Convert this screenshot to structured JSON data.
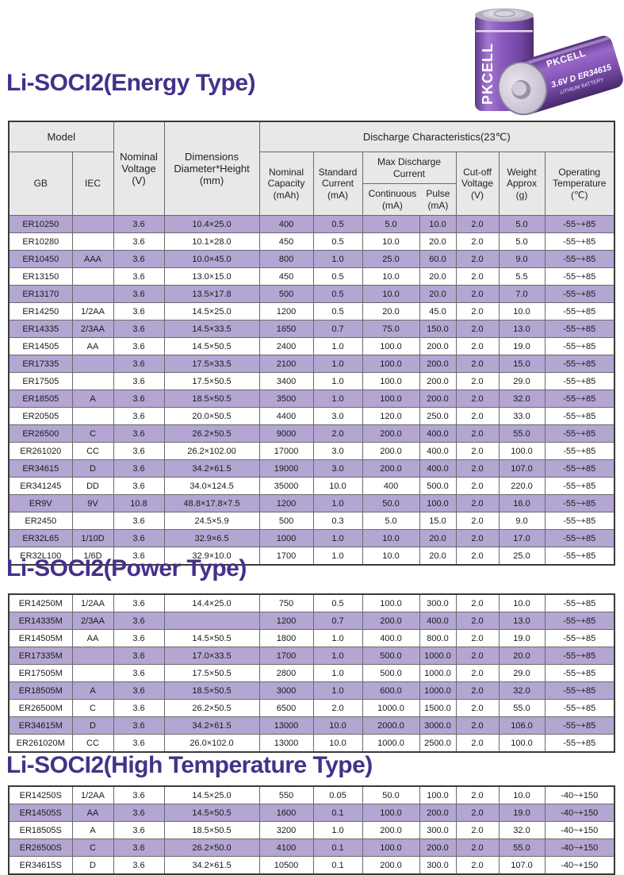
{
  "colors": {
    "title_text": "#453189",
    "alt_row_purple": "#b3a6d2",
    "header_gray": "#e8e8e8",
    "battery_purple": "#7d4fae"
  },
  "sections": {
    "energy": {
      "title": "Li-SOCI2(Energy Type)"
    },
    "power": {
      "title": "Li-SOCI2(Power Type)"
    },
    "high_temp": {
      "title": "Li-SOCI2(High Temperature Type)"
    }
  },
  "header": {
    "model": "Model",
    "gb": "GB",
    "iec": "IEC",
    "nominal_voltage": "Nominal\nVoltage\n(V)",
    "dimensions": "Dimensions\nDiameter*Height\n(mm)",
    "discharge": "Discharge Characteristics(23℃)",
    "nominal_capacity": "Nominal\nCapacity\n(mAh)",
    "standard_current": "Standard\nCurrent\n(mA)",
    "max_discharge": "Max Discharge\nCurrent",
    "continuous": "Continuous\n(mA)",
    "pulse": "Pulse\n(mA)",
    "cutoff_voltage": "Cut-off\nVoltage\n(V)",
    "weight": "Weight\nApprox\n(g)",
    "operating_temp": "Operating\nTemperature\n(℃)"
  },
  "battery_photo": {
    "brand": "PKCELL",
    "label": "3.6V D ER34615",
    "sublabel": "LITHIUM BATTERY"
  },
  "energy_rows": [
    {
      "gb": "ER10250",
      "iec": "",
      "voltage": "3.6",
      "dims": "10.4×25.0",
      "capacity": "400",
      "std": "0.5",
      "cont": "5.0",
      "pulse": "10.0",
      "cutoff": "2.0",
      "weight": "5.0",
      "temp": "-55~+85"
    },
    {
      "gb": "ER10280",
      "iec": "",
      "voltage": "3.6",
      "dims": "10.1×28.0",
      "capacity": "450",
      "std": "0.5",
      "cont": "10.0",
      "pulse": "20.0",
      "cutoff": "2.0",
      "weight": "5.0",
      "temp": "-55~+85"
    },
    {
      "gb": "ER10450",
      "iec": "AAA",
      "voltage": "3.6",
      "dims": "10.0×45.0",
      "capacity": "800",
      "std": "1.0",
      "cont": "25.0",
      "pulse": "60.0",
      "cutoff": "2.0",
      "weight": "9.0",
      "temp": "-55~+85"
    },
    {
      "gb": "ER13150",
      "iec": "",
      "voltage": "3.6",
      "dims": "13.0×15.0",
      "capacity": "450",
      "std": "0.5",
      "cont": "10.0",
      "pulse": "20.0",
      "cutoff": "2.0",
      "weight": "5.5",
      "temp": "-55~+85"
    },
    {
      "gb": "ER13170",
      "iec": "",
      "voltage": "3.6",
      "dims": "13.5×17.8",
      "capacity": "500",
      "std": "0.5",
      "cont": "10.0",
      "pulse": "20.0",
      "cutoff": "2.0",
      "weight": "7.0",
      "temp": "-55~+85"
    },
    {
      "gb": "ER14250",
      "iec": "1/2AA",
      "voltage": "3.6",
      "dims": "14.5×25.0",
      "capacity": "1200",
      "std": "0.5",
      "cont": "20.0",
      "pulse": "45.0",
      "cutoff": "2.0",
      "weight": "10.0",
      "temp": "-55~+85"
    },
    {
      "gb": "ER14335",
      "iec": "2/3AA",
      "voltage": "3.6",
      "dims": "14.5×33.5",
      "capacity": "1650",
      "std": "0.7",
      "cont": "75.0",
      "pulse": "150.0",
      "cutoff": "2.0",
      "weight": "13.0",
      "temp": "-55~+85"
    },
    {
      "gb": "ER14505",
      "iec": "AA",
      "voltage": "3.6",
      "dims": "14.5×50.5",
      "capacity": "2400",
      "std": "1.0",
      "cont": "100.0",
      "pulse": "200.0",
      "cutoff": "2.0",
      "weight": "19.0",
      "temp": "-55~+85"
    },
    {
      "gb": "ER17335",
      "iec": "",
      "voltage": "3.6",
      "dims": "17.5×33.5",
      "capacity": "2100",
      "std": "1.0",
      "cont": "100.0",
      "pulse": "200.0",
      "cutoff": "2.0",
      "weight": "15.0",
      "temp": "-55~+85"
    },
    {
      "gb": "ER17505",
      "iec": "",
      "voltage": "3.6",
      "dims": "17.5×50.5",
      "capacity": "3400",
      "std": "1.0",
      "cont": "100.0",
      "pulse": "200.0",
      "cutoff": "2.0",
      "weight": "29.0",
      "temp": "-55~+85"
    },
    {
      "gb": "ER18505",
      "iec": "A",
      "voltage": "3.6",
      "dims": "18.5×50.5",
      "capacity": "3500",
      "std": "1.0",
      "cont": "100.0",
      "pulse": "200.0",
      "cutoff": "2.0",
      "weight": "32.0",
      "temp": "-55~+85"
    },
    {
      "gb": "ER20505",
      "iec": "",
      "voltage": "3.6",
      "dims": "20.0×50.5",
      "capacity": "4400",
      "std": "3.0",
      "cont": "120.0",
      "pulse": "250.0",
      "cutoff": "2.0",
      "weight": "33.0",
      "temp": "-55~+85"
    },
    {
      "gb": "ER26500",
      "iec": "C",
      "voltage": "3.6",
      "dims": "26.2×50.5",
      "capacity": "9000",
      "std": "2.0",
      "cont": "200.0",
      "pulse": "400.0",
      "cutoff": "2.0",
      "weight": "55.0",
      "temp": "-55~+85"
    },
    {
      "gb": "ER261020",
      "iec": "CC",
      "voltage": "3.6",
      "dims": "26.2×102.00",
      "capacity": "17000",
      "std": "3.0",
      "cont": "200.0",
      "pulse": "400.0",
      "cutoff": "2.0",
      "weight": "100.0",
      "temp": "-55~+85"
    },
    {
      "gb": "ER34615",
      "iec": "D",
      "voltage": "3.6",
      "dims": "34.2×61.5",
      "capacity": "19000",
      "std": "3.0",
      "cont": "200.0",
      "pulse": "400.0",
      "cutoff": "2.0",
      "weight": "107.0",
      "temp": "-55~+85"
    },
    {
      "gb": "ER341245",
      "iec": "DD",
      "voltage": "3.6",
      "dims": "34.0×124.5",
      "capacity": "35000",
      "std": "10.0",
      "cont": "400",
      "pulse": "500.0",
      "cutoff": "2.0",
      "weight": "220.0",
      "temp": "-55~+85"
    },
    {
      "gb": "ER9V",
      "iec": "9V",
      "voltage": "10.8",
      "dims": "48.8×17.8×7.5",
      "capacity": "1200",
      "std": "1.0",
      "cont": "50.0",
      "pulse": "100.0",
      "cutoff": "2.0",
      "weight": "16.0",
      "temp": "-55~+85"
    },
    {
      "gb": "ER2450",
      "iec": "",
      "voltage": "3.6",
      "dims": "24.5×5.9",
      "capacity": "500",
      "std": "0.3",
      "cont": "5.0",
      "pulse": "15.0",
      "cutoff": "2.0",
      "weight": "9.0",
      "temp": "-55~+85"
    },
    {
      "gb": "ER32L65",
      "iec": "1/10D",
      "voltage": "3.6",
      "dims": "32.9×6.5",
      "capacity": "1000",
      "std": "1.0",
      "cont": "10.0",
      "pulse": "20.0",
      "cutoff": "2.0",
      "weight": "17.0",
      "temp": "-55~+85"
    },
    {
      "gb": "ER32L100",
      "iec": "1/6D",
      "voltage": "3.6",
      "dims": "32.9×10.0",
      "capacity": "1700",
      "std": "1.0",
      "cont": "10.0",
      "pulse": "20.0",
      "cutoff": "2.0",
      "weight": "25.0",
      "temp": "-55~+85"
    }
  ],
  "power_rows": [
    {
      "gb": "ER14250M",
      "iec": "1/2AA",
      "voltage": "3.6",
      "dims": "14.4×25.0",
      "capacity": "750",
      "std": "0.5",
      "cont": "100.0",
      "pulse": "300.0",
      "cutoff": "2.0",
      "weight": "10.0",
      "temp": "-55~+85"
    },
    {
      "gb": "ER14335M",
      "iec": "2/3AA",
      "voltage": "3.6",
      "dims": "",
      "capacity": "1200",
      "std": "0.7",
      "cont": "200.0",
      "pulse": "400.0",
      "cutoff": "2.0",
      "weight": "13.0",
      "temp": "-55~+85"
    },
    {
      "gb": "ER14505M",
      "iec": "AA",
      "voltage": "3.6",
      "dims": "14.5×50.5",
      "capacity": "1800",
      "std": "1.0",
      "cont": "400.0",
      "pulse": "800.0",
      "cutoff": "2.0",
      "weight": "19.0",
      "temp": "-55~+85"
    },
    {
      "gb": "ER17335M",
      "iec": "",
      "voltage": "3.6",
      "dims": "17.0×33.5",
      "capacity": "1700",
      "std": "1.0",
      "cont": "500.0",
      "pulse": "1000.0",
      "cutoff": "2.0",
      "weight": "20.0",
      "temp": "-55~+85"
    },
    {
      "gb": "ER17505M",
      "iec": "",
      "voltage": "3.6",
      "dims": "17.5×50.5",
      "capacity": "2800",
      "std": "1.0",
      "cont": "500.0",
      "pulse": "1000.0",
      "cutoff": "2.0",
      "weight": "29.0",
      "temp": "-55~+85"
    },
    {
      "gb": "ER18505M",
      "iec": "A",
      "voltage": "3.6",
      "dims": "18.5×50.5",
      "capacity": "3000",
      "std": "1.0",
      "cont": "600.0",
      "pulse": "1000.0",
      "cutoff": "2.0",
      "weight": "32.0",
      "temp": "-55~+85"
    },
    {
      "gb": "ER26500M",
      "iec": "C",
      "voltage": "3.6",
      "dims": "26.2×50.5",
      "capacity": "6500",
      "std": "2.0",
      "cont": "1000.0",
      "pulse": "1500.0",
      "cutoff": "2.0",
      "weight": "55.0",
      "temp": "-55~+85"
    },
    {
      "gb": "ER34615M",
      "iec": "D",
      "voltage": "3.6",
      "dims": "34.2×61.5",
      "capacity": "13000",
      "std": "10.0",
      "cont": "2000.0",
      "pulse": "3000.0",
      "cutoff": "2.0",
      "weight": "106.0",
      "temp": "-55~+85"
    },
    {
      "gb": "ER261020M",
      "iec": "CC",
      "voltage": "3.6",
      "dims": "26.0×102.0",
      "capacity": "13000",
      "std": "10.0",
      "cont": "1000.0",
      "pulse": "2500.0",
      "cutoff": "2.0",
      "weight": "100.0",
      "temp": "-55~+85"
    }
  ],
  "high_temp_rows": [
    {
      "gb": "ER14250S",
      "iec": "1/2AA",
      "voltage": "3.6",
      "dims": "14.5×25.0",
      "capacity": "550",
      "std": "0.05",
      "cont": "50.0",
      "pulse": "100.0",
      "cutoff": "2.0",
      "weight": "10.0",
      "temp": "-40~+150"
    },
    {
      "gb": "ER14505S",
      "iec": "AA",
      "voltage": "3.6",
      "dims": "14.5×50.5",
      "capacity": "1600",
      "std": "0.1",
      "cont": "100.0",
      "pulse": "200.0",
      "cutoff": "2.0",
      "weight": "19.0",
      "temp": "-40~+150"
    },
    {
      "gb": "ER18505S",
      "iec": "A",
      "voltage": "3.6",
      "dims": "18.5×50.5",
      "capacity": "3200",
      "std": "1.0",
      "cont": "200.0",
      "pulse": "300.0",
      "cutoff": "2.0",
      "weight": "32.0",
      "temp": "-40~+150"
    },
    {
      "gb": "ER26500S",
      "iec": "C",
      "voltage": "3.6",
      "dims": "26.2×50.0",
      "capacity": "4100",
      "std": "0.1",
      "cont": "100.0",
      "pulse": "200.0",
      "cutoff": "2.0",
      "weight": "55.0",
      "temp": "-40~+150"
    },
    {
      "gb": "ER34615S",
      "iec": "D",
      "voltage": "3.6",
      "dims": "34.2×61.5",
      "capacity": "10500",
      "std": "0.1",
      "cont": "200.0",
      "pulse": "300.0",
      "cutoff": "2.0",
      "weight": "107.0",
      "temp": "-40~+150"
    }
  ]
}
